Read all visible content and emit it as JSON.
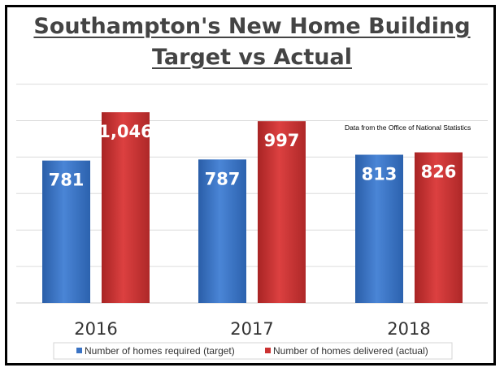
{
  "chart_data": {
    "type": "bar",
    "title_line1": "Southampton's New Home Building",
    "title_line2": "Target vs Actual",
    "categories": [
      "2016",
      "2017",
      "2018"
    ],
    "series": [
      {
        "name": "Number of homes required (target)",
        "values": [
          781,
          787,
          813
        ],
        "labels": [
          "781",
          "787",
          "813"
        ],
        "color": "#3a73c4"
      },
      {
        "name": "Number of homes delivered (actual)",
        "values": [
          1046,
          997,
          826
        ],
        "labels": [
          "1,046",
          "997",
          "826"
        ],
        "color": "#cc3232"
      }
    ],
    "annotation": "Data from the Office of National Statistics",
    "ylim": [
      0,
      1200
    ],
    "grid": true,
    "legend_position": "bottom"
  }
}
